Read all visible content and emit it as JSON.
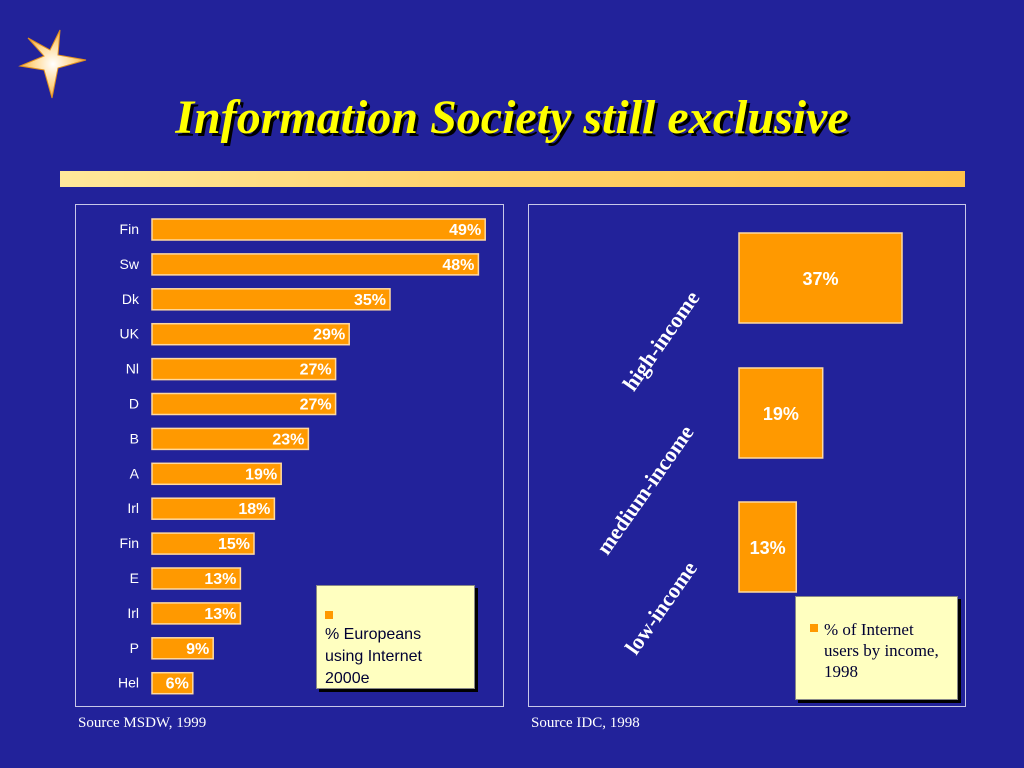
{
  "slide": {
    "title": "Information Society still exclusive",
    "logo_icon": "star-icon"
  },
  "colors": {
    "background": "#22229a",
    "title": "#ffff00",
    "bar_fill": "#ff9900",
    "bar_border": "#ffd9a0",
    "legend_background": "#ffffc0"
  },
  "chart_data": [
    {
      "type": "bar",
      "orientation": "horizontal",
      "categories": [
        "Fin",
        "Sw",
        "Dk",
        "UK",
        "Nl",
        "D",
        "B",
        "A",
        "Irl",
        "Fin",
        "E",
        "Irl",
        "P",
        "Hel"
      ],
      "values": [
        49,
        48,
        35,
        29,
        27,
        27,
        23,
        19,
        18,
        15,
        13,
        13,
        9,
        6
      ],
      "value_labels": [
        "49%",
        "48%",
        "35%",
        "29%",
        "27%",
        "27%",
        "23%",
        "19%",
        "18%",
        "15%",
        "13%",
        "13%",
        "9%",
        "6%"
      ],
      "legend": [
        "% Europeans using Internet 2000e"
      ],
      "legend_placement": "bottom-right",
      "source": "Source MSDW, 1999",
      "grid": false
    },
    {
      "type": "bar",
      "orientation": "horizontal",
      "categories": [
        "high-income",
        "medium-income",
        "low-income"
      ],
      "values": [
        37,
        19,
        13
      ],
      "value_labels": [
        "37%",
        "19%",
        "13%"
      ],
      "legend": [
        "% of Internet users by income, 1998"
      ],
      "legend_placement": "bottom-right",
      "source": "Source IDC, 1998",
      "grid": false
    }
  ]
}
